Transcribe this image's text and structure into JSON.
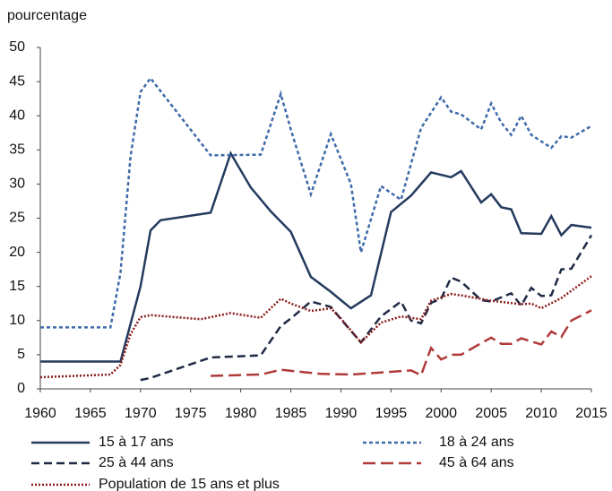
{
  "chart_data": {
    "type": "line",
    "y_label": "pourcentage",
    "xlim": [
      1960,
      2015
    ],
    "xticks": [
      1960,
      1965,
      1970,
      1975,
      1980,
      1985,
      1990,
      1995,
      2000,
      2005,
      2010,
      2015
    ],
    "ylim": [
      0,
      50
    ],
    "yticks": [
      0,
      5,
      10,
      15,
      20,
      25,
      30,
      35,
      40,
      45,
      50
    ],
    "grid": false,
    "legend": "bottom",
    "series": [
      {
        "name": "15 à 17 ans",
        "color": "#243a5e",
        "style": "solid",
        "x": [
          1960,
          1968,
          1970,
          1971,
          1972,
          1977,
          1979,
          1981,
          1983,
          1985,
          1987,
          1989,
          1991,
          1993,
          1995,
          1997,
          1999,
          2001,
          2002,
          2004,
          2005,
          2006,
          2007,
          2008,
          2010,
          2011,
          2012,
          2013,
          2015
        ],
        "values": [
          4,
          4,
          15,
          23.2,
          24.7,
          25.8,
          34.5,
          29.5,
          26,
          23,
          16.4,
          14.2,
          11.8,
          13.7,
          25.9,
          28.3,
          31.7,
          31,
          31.9,
          27.3,
          28.5,
          26.6,
          26.3,
          22.8,
          22.7,
          25.3,
          22.5,
          24,
          23.6
        ]
      },
      {
        "name": "18 à 24 ans",
        "color": "#3e6aa8",
        "style": "short-dash",
        "x": [
          1960,
          1967,
          1968,
          1969,
          1970,
          1971,
          1977,
          1982,
          1984,
          1985,
          1987,
          1989,
          1991,
          1992,
          1994,
          1996,
          1998,
          2000,
          2001,
          2002,
          2004,
          2005,
          2006,
          2007,
          2008,
          2009,
          2011,
          2012,
          2013,
          2015
        ],
        "values": [
          9,
          9,
          17,
          34,
          43.5,
          45.5,
          34.2,
          34.3,
          43.2,
          38,
          28.5,
          37.3,
          30,
          20,
          29.7,
          27.7,
          38.2,
          42.7,
          40.6,
          40.2,
          38,
          41.8,
          39,
          37.2,
          40,
          37.2,
          35.3,
          37,
          36.8,
          38.5
        ]
      },
      {
        "name": "25 à 44 ans",
        "color": "#1f2a44",
        "style": "dash",
        "x": [
          1970,
          1971,
          1977,
          1982,
          1984,
          1985,
          1987,
          1989,
          1990,
          1992,
          1994,
          1996,
          1997,
          1998,
          1999,
          2000,
          2001,
          2002,
          2004,
          2005,
          2006,
          2007,
          2008,
          2009,
          2010,
          2011,
          2012,
          2013,
          2015
        ],
        "values": [
          1.3,
          1.6,
          4.6,
          4.9,
          9.2,
          10.3,
          12.8,
          12,
          10.2,
          6.8,
          10.6,
          12.8,
          10,
          9.6,
          12.6,
          13.2,
          16.3,
          15.7,
          13,
          12.8,
          13.4,
          14,
          12.2,
          14.8,
          13.6,
          13.7,
          17.5,
          17.6,
          22.5
        ]
      },
      {
        "name": "45 à 64 ans",
        "color": "#b03a3a",
        "style": "long-dash",
        "x": [
          1977,
          1982,
          1984,
          1986,
          1988,
          1991,
          1994,
          1997,
          1998,
          1999,
          2000,
          2001,
          2002,
          2004,
          2005,
          2006,
          2007,
          2008,
          2010,
          2011,
          2012,
          2013,
          2015
        ],
        "values": [
          1.9,
          2.1,
          2.8,
          2.5,
          2.2,
          2.1,
          2.4,
          2.7,
          2,
          6,
          4.3,
          5,
          5,
          6.7,
          7.5,
          6.6,
          6.6,
          7.4,
          6.5,
          8.4,
          7.6,
          10,
          11.5
        ]
      },
      {
        "name": "Population de 15 ans et plus",
        "color": "#8b1a1a",
        "style": "dot",
        "x": [
          1960,
          1967,
          1968,
          1969,
          1970,
          1971,
          1976,
          1979,
          1982,
          1984,
          1985,
          1987,
          1989,
          1990,
          1992,
          1994,
          1996,
          1998,
          1999,
          2001,
          2002,
          2005,
          2008,
          2009,
          2010,
          2012,
          2015
        ],
        "values": [
          1.7,
          2.1,
          3.5,
          8,
          10.5,
          10.8,
          10.2,
          11.1,
          10.4,
          13.2,
          12.5,
          11.4,
          11.8,
          10.3,
          6.8,
          9.7,
          10.6,
          10.2,
          12.9,
          13.9,
          13.7,
          12.9,
          12.4,
          12.5,
          11.8,
          13.3,
          16.5
        ]
      }
    ]
  }
}
